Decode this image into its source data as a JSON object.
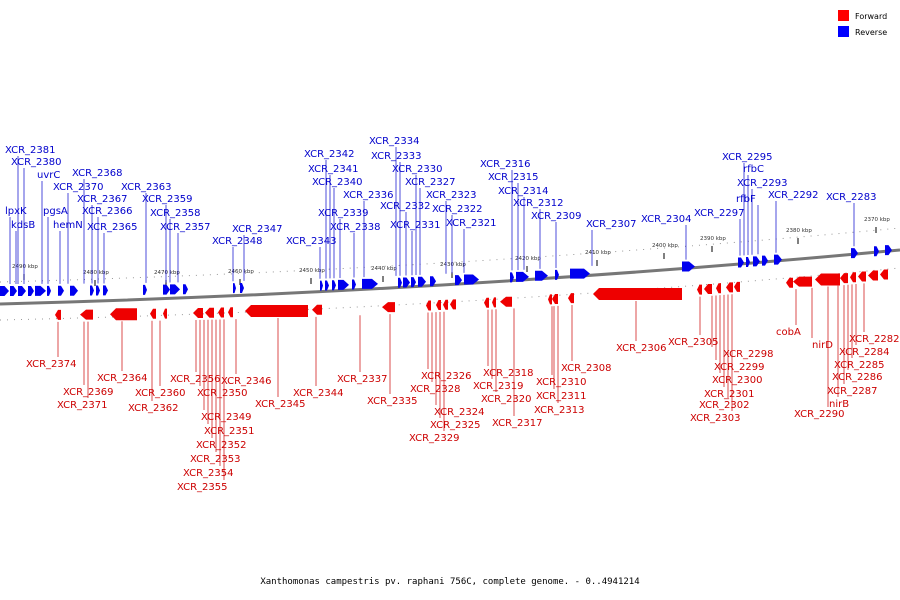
{
  "legend": [
    {
      "label": "Forward",
      "color": "#ff0000"
    },
    {
      "label": "Reverse",
      "color": "#0000ff"
    }
  ],
  "caption": "Xanthomonas campestris pv. raphani 756C, complete genome. - 0..4941214",
  "ticks": [
    "2370 kbp",
    "2380 kbp",
    "2390 kbp",
    "2400 kbp",
    "2410 kbp",
    "2420 kbp",
    "2430 kbp",
    "2440 kbp",
    "2450 kbp",
    "2460 kbp",
    "2470 kbp",
    "2480 kbp",
    "2490 kbp"
  ],
  "reverse_labels": [
    "lpxK",
    "kdsB",
    "XCR_2381",
    "XCR_2380",
    "uvrC",
    "pgsA",
    "hemN",
    "XCR_2370",
    "XCR_2368",
    "XCR_2367",
    "XCR_2366",
    "XCR_2365",
    "XCR_2363",
    "XCR_2359",
    "XCR_2358",
    "XCR_2357",
    "XCR_2348",
    "XCR_2347",
    "XCR_2343",
    "XCR_2342",
    "XCR_2341",
    "XCR_2340",
    "XCR_2339",
    "XCR_2338",
    "XCR_2336",
    "XCR_2334",
    "XCR_2333",
    "XCR_2332",
    "XCR_2331",
    "XCR_2330",
    "XCR_2327",
    "XCR_2323",
    "XCR_2322",
    "XCR_2321",
    "XCR_2316",
    "XCR_2315",
    "XCR_2314",
    "XCR_2312",
    "XCR_2309",
    "XCR_2307",
    "XCR_2304",
    "XCR_2297",
    "XCR_2295",
    "rfbC",
    "XCR_2293",
    "rfbF",
    "XCR_2292",
    "XCR_2283"
  ],
  "forward_labels": [
    "XCR_2374",
    "XCR_2369",
    "XCR_2371",
    "XCR_2364",
    "XCR_2362",
    "XCR_2360",
    "XCR_2356",
    "XCR_2350",
    "XCR_2349",
    "XCR_2351",
    "XCR_2352",
    "XCR_2353",
    "XCR_2354",
    "XCR_2355",
    "XCR_2346",
    "XCR_2345",
    "XCR_2344",
    "XCR_2337",
    "XCR_2335",
    "XCR_2326",
    "XCR_2328",
    "XCR_2324",
    "XCR_2325",
    "XCR_2329",
    "XCR_2318",
    "XCR_2319",
    "XCR_2320",
    "XCR_2317",
    "XCR_2310",
    "XCR_2311",
    "XCR_2313",
    "XCR_2308",
    "XCR_2306",
    "XCR_2305",
    "XCR_2298",
    "XCR_2299",
    "XCR_2300",
    "XCR_2301",
    "XCR_2302",
    "XCR_2303",
    "cobA",
    "nirD",
    "XCR_2290",
    "nirB",
    "XCR_2287",
    "XCR_2286",
    "XCR_2285",
    "XCR_2284",
    "XCR_2282"
  ]
}
